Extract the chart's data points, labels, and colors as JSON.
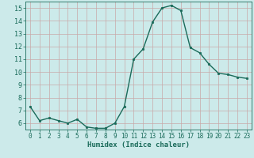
{
  "x": [
    0,
    1,
    2,
    3,
    4,
    5,
    6,
    7,
    8,
    9,
    10,
    11,
    12,
    13,
    14,
    15,
    16,
    17,
    18,
    19,
    20,
    21,
    22,
    23
  ],
  "y": [
    7.3,
    6.2,
    6.4,
    6.2,
    6.0,
    6.3,
    5.7,
    5.6,
    5.6,
    6.0,
    7.3,
    11.0,
    11.8,
    13.9,
    15.0,
    15.2,
    14.8,
    11.9,
    11.5,
    10.6,
    9.9,
    9.8,
    9.6,
    9.5
  ],
  "line_color": "#1a6b5a",
  "marker": "o",
  "markersize": 1.8,
  "linewidth": 1.0,
  "xlabel": "Humidex (Indice chaleur)",
  "ylim": [
    5.5,
    15.5
  ],
  "xlim": [
    -0.5,
    23.5
  ],
  "yticks": [
    6,
    7,
    8,
    9,
    10,
    11,
    12,
    13,
    14,
    15
  ],
  "xticks": [
    0,
    1,
    2,
    3,
    4,
    5,
    6,
    7,
    8,
    9,
    10,
    11,
    12,
    13,
    14,
    15,
    16,
    17,
    18,
    19,
    20,
    21,
    22,
    23
  ],
  "bg_color": "#cceaea",
  "grid_color": "#c8a8a8",
  "line_label_color": "#1a6b5a",
  "xlabel_fontsize": 6.5,
  "tick_fontsize": 5.5,
  "ytick_fontsize": 6.0
}
